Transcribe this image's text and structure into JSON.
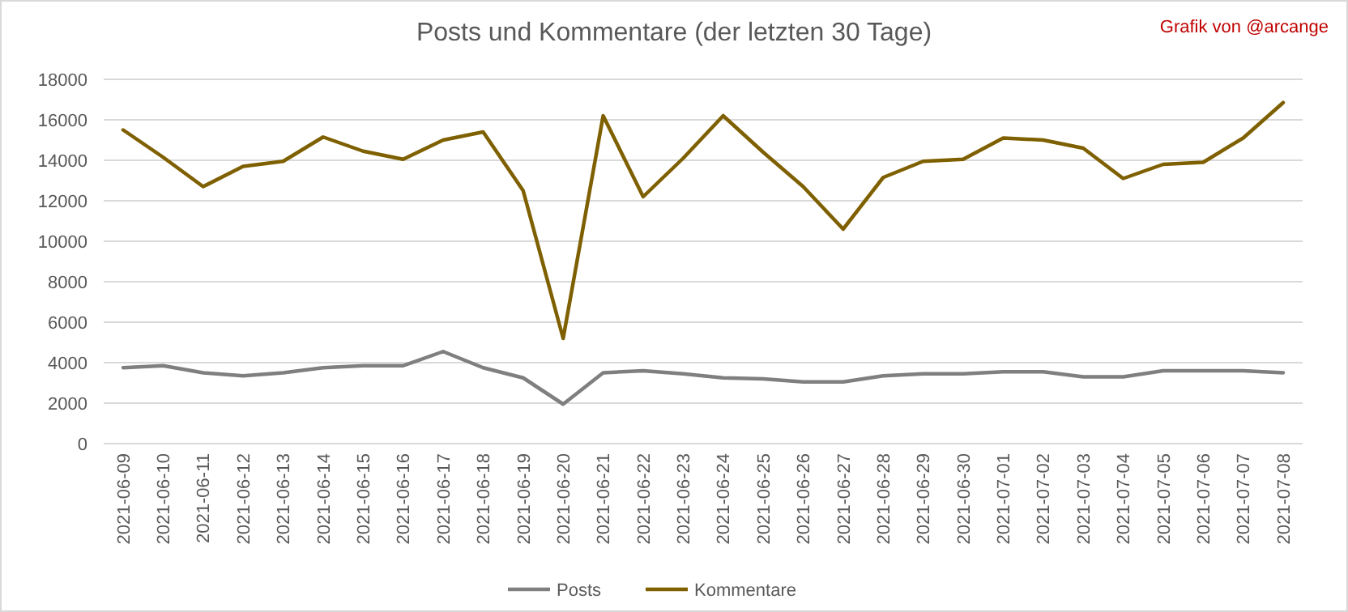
{
  "chart_data": {
    "type": "line",
    "title": "Posts und Kommentare (der letzten 30 Tage)",
    "annotations": [
      "Grafik von @arcange"
    ],
    "categories": [
      "2021-06-09",
      "2021-06-10",
      "2021-06-11",
      "2021-06-12",
      "2021-06-13",
      "2021-06-14",
      "2021-06-15",
      "2021-06-16",
      "2021-06-17",
      "2021-06-18",
      "2021-06-19",
      "2021-06-20",
      "2021-06-21",
      "2021-06-22",
      "2021-06-23",
      "2021-06-24",
      "2021-06-25",
      "2021-06-26",
      "2021-06-27",
      "2021-06-28",
      "2021-06-29",
      "2021-06-30",
      "2021-07-01",
      "2021-07-02",
      "2021-07-03",
      "2021-07-04",
      "2021-07-05",
      "2021-07-06",
      "2021-07-07",
      "2021-07-08"
    ],
    "series": [
      {
        "name": "Posts",
        "color": "#7f7f7f",
        "values": [
          3750,
          3850,
          3500,
          3350,
          3500,
          3750,
          3850,
          3850,
          4550,
          3750,
          3250,
          1950,
          3500,
          3600,
          3450,
          3250,
          3200,
          3050,
          3050,
          3350,
          3450,
          3450,
          3550,
          3550,
          3300,
          3300,
          3600,
          3600,
          3600,
          3500
        ]
      },
      {
        "name": "Kommentare",
        "color": "#7f6000",
        "values": [
          15500,
          14150,
          12700,
          13700,
          13950,
          15150,
          14450,
          14050,
          15000,
          15400,
          12500,
          5200,
          16200,
          12200,
          14100,
          16200,
          14400,
          12700,
          10600,
          13150,
          13950,
          14050,
          15100,
          15000,
          14600,
          13100,
          13800,
          13900,
          15100,
          16850
        ]
      }
    ],
    "ylim": [
      0,
      18000
    ],
    "yticks": [
      0,
      2000,
      4000,
      6000,
      8000,
      10000,
      12000,
      14000,
      16000,
      18000
    ],
    "grid": "y",
    "legend": "bottom",
    "marker": "none",
    "line_style": "solid"
  }
}
